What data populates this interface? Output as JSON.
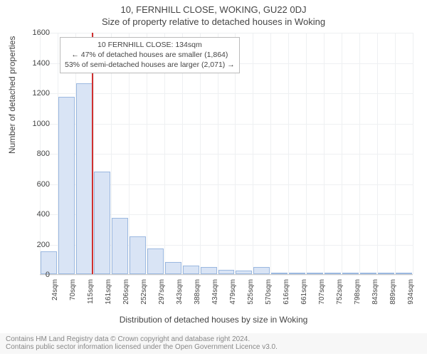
{
  "title_line1": "10, FERNHILL CLOSE, WOKING, GU22 0DJ",
  "title_line2": "Size of property relative to detached houses in Woking",
  "chart": {
    "type": "histogram",
    "y_label": "Number of detached properties",
    "x_label": "Distribution of detached houses by size in Woking",
    "ylim_max": 1600,
    "ytick_step": 200,
    "bar_fill": "#d9e4f5",
    "bar_border": "#9bb8e0",
    "grid_color": "#eef0f2",
    "background": "#ffffff",
    "marker_color": "#d03030",
    "marker_x_value": 134,
    "x_min": 0,
    "x_max": 960,
    "x_tick_labels": [
      "24sqm",
      "70sqm",
      "115sqm",
      "161sqm",
      "206sqm",
      "252sqm",
      "297sqm",
      "343sqm",
      "388sqm",
      "434sqm",
      "479sqm",
      "525sqm",
      "570sqm",
      "616sqm",
      "661sqm",
      "707sqm",
      "752sqm",
      "798sqm",
      "843sqm",
      "889sqm",
      "934sqm"
    ],
    "categories": [
      "24",
      "70",
      "115",
      "161",
      "206",
      "252",
      "297",
      "343",
      "388",
      "434",
      "479",
      "525",
      "570",
      "616",
      "661",
      "707",
      "752",
      "798",
      "843",
      "889",
      "934"
    ],
    "values": [
      150,
      1170,
      1260,
      680,
      370,
      250,
      170,
      80,
      55,
      45,
      30,
      22,
      45,
      8,
      8,
      6,
      5,
      4,
      3,
      3,
      2
    ]
  },
  "annotation": {
    "line1": "10 FERNHILL CLOSE: 134sqm",
    "line2": "← 47% of detached houses are smaller (1,864)",
    "line3": "53% of semi-detached houses are larger (2,071) →"
  },
  "footer": {
    "line1": "Contains HM Land Registry data © Crown copyright and database right 2024.",
    "line2": "Contains public sector information licensed under the Open Government Licence v3.0."
  }
}
